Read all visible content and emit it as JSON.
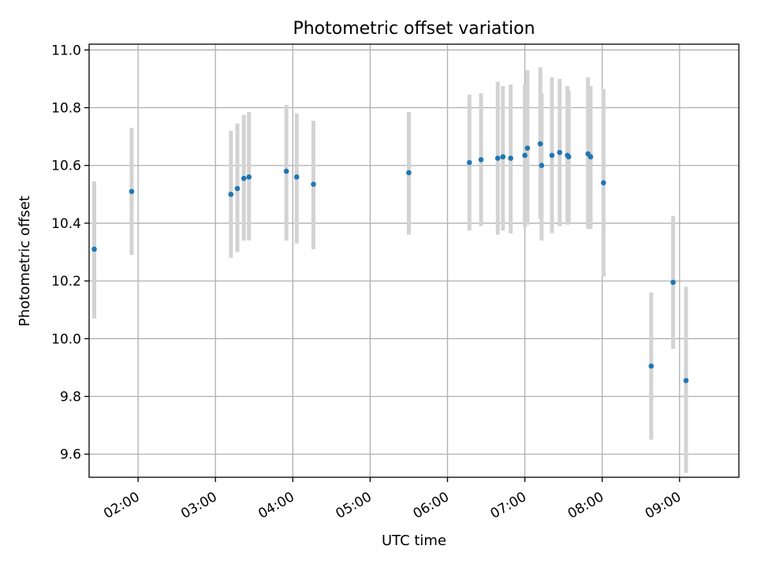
{
  "chart_data": {
    "type": "scatter",
    "title": "Photometric offset variation",
    "xlabel": "UTC time",
    "ylabel": "Photometric offset",
    "x_axis_kind": "time (HH:MM)",
    "xlim": [
      "01:22",
      "09:46"
    ],
    "ylim": [
      9.52,
      11.02
    ],
    "grid": true,
    "colors": {
      "point": "#1f77b4",
      "errorbar": "#d3d3d3",
      "grid": "#b0b0b0"
    },
    "xticks": [
      "02:00",
      "03:00",
      "04:00",
      "05:00",
      "06:00",
      "07:00",
      "08:00",
      "09:00"
    ],
    "yticks": [
      "9.6",
      "9.8",
      "10.0",
      "10.2",
      "10.4",
      "10.6",
      "10.8",
      "11.0"
    ],
    "series": [
      {
        "points": [
          {
            "x": "01:26",
            "y": 10.31,
            "ylow": 10.07,
            "yhigh": 10.545
          },
          {
            "x": "01:55",
            "y": 10.51,
            "ylow": 10.29,
            "yhigh": 10.73
          },
          {
            "x": "03:12",
            "y": 10.5,
            "ylow": 10.28,
            "yhigh": 10.72
          },
          {
            "x": "03:17",
            "y": 10.52,
            "ylow": 10.3,
            "yhigh": 10.745
          },
          {
            "x": "03:22",
            "y": 10.555,
            "ylow": 10.34,
            "yhigh": 10.775
          },
          {
            "x": "03:26",
            "y": 10.56,
            "ylow": 10.34,
            "yhigh": 10.785
          },
          {
            "x": "03:55",
            "y": 10.58,
            "ylow": 10.34,
            "yhigh": 10.81
          },
          {
            "x": "04:03",
            "y": 10.56,
            "ylow": 10.33,
            "yhigh": 10.78
          },
          {
            "x": "04:16",
            "y": 10.535,
            "ylow": 10.31,
            "yhigh": 10.755
          },
          {
            "x": "05:30",
            "y": 10.575,
            "ylow": 10.36,
            "yhigh": 10.785
          },
          {
            "x": "06:17",
            "y": 10.61,
            "ylow": 10.375,
            "yhigh": 10.845
          },
          {
            "x": "06:26",
            "y": 10.62,
            "ylow": 10.39,
            "yhigh": 10.85
          },
          {
            "x": "06:39",
            "y": 10.625,
            "ylow": 10.36,
            "yhigh": 10.89
          },
          {
            "x": "06:43",
            "y": 10.63,
            "ylow": 10.375,
            "yhigh": 10.875
          },
          {
            "x": "06:49",
            "y": 10.625,
            "ylow": 10.365,
            "yhigh": 10.88
          },
          {
            "x": "07:00",
            "y": 10.635,
            "ylow": 10.385,
            "yhigh": 10.88
          },
          {
            "x": "07:02",
            "y": 10.66,
            "ylow": 10.395,
            "yhigh": 10.93
          },
          {
            "x": "07:12",
            "y": 10.675,
            "ylow": 10.415,
            "yhigh": 10.94
          },
          {
            "x": "07:13",
            "y": 10.6,
            "ylow": 10.34,
            "yhigh": 10.85
          },
          {
            "x": "07:21",
            "y": 10.635,
            "ylow": 10.365,
            "yhigh": 10.905
          },
          {
            "x": "07:27",
            "y": 10.645,
            "ylow": 10.39,
            "yhigh": 10.9
          },
          {
            "x": "07:33",
            "y": 10.635,
            "ylow": 10.395,
            "yhigh": 10.875
          },
          {
            "x": "07:34",
            "y": 10.63,
            "ylow": 10.4,
            "yhigh": 10.86
          },
          {
            "x": "07:49",
            "y": 10.64,
            "ylow": 10.38,
            "yhigh": 10.905
          },
          {
            "x": "07:51",
            "y": 10.63,
            "ylow": 10.38,
            "yhigh": 10.875
          },
          {
            "x": "08:01",
            "y": 10.54,
            "ylow": 10.215,
            "yhigh": 10.865
          },
          {
            "x": "08:38",
            "y": 9.905,
            "ylow": 9.65,
            "yhigh": 10.16
          },
          {
            "x": "08:55",
            "y": 10.195,
            "ylow": 9.965,
            "yhigh": 10.425
          },
          {
            "x": "09:05",
            "y": 9.855,
            "ylow": 9.535,
            "yhigh": 10.18
          }
        ]
      }
    ]
  }
}
